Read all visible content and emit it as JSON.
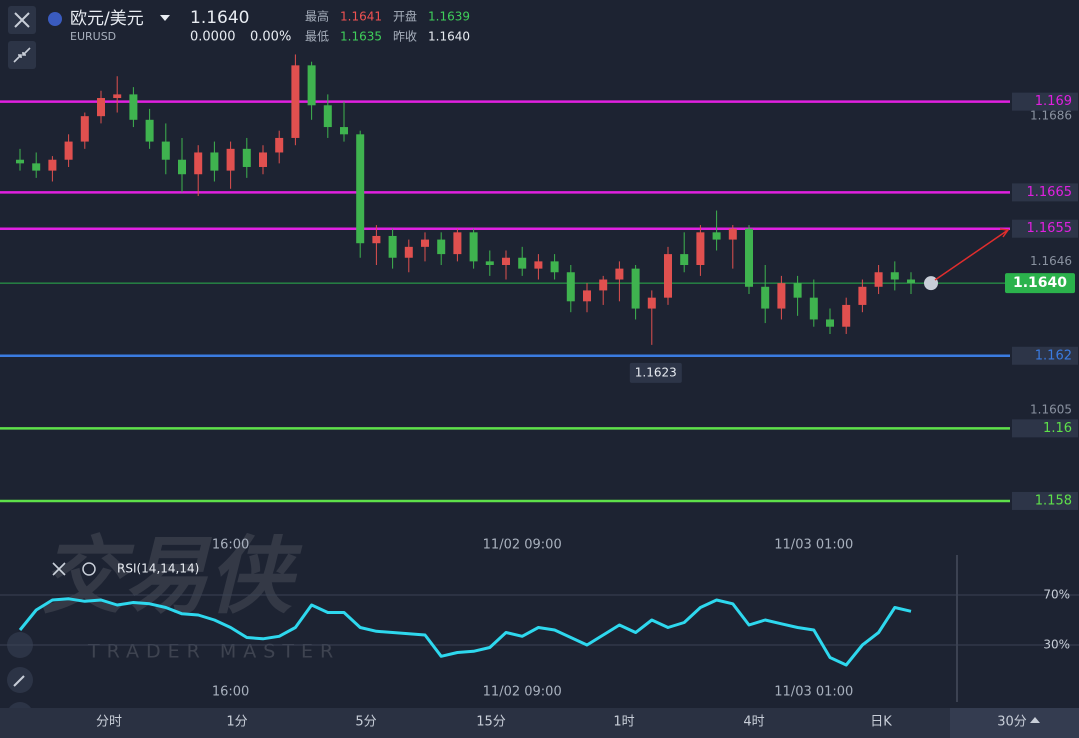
{
  "header": {
    "pair": "欧元/美元",
    "symbol": "EURUSD",
    "price": "1.1640",
    "change": "0.0000",
    "change_pct": "0.00%",
    "stats": [
      {
        "label": "最高",
        "value": "1.1641"
      },
      {
        "label": "开盘",
        "value": "1.1639"
      },
      {
        "label": "最低",
        "value": "1.1635"
      },
      {
        "label": "昨收",
        "value": "1.1640"
      }
    ]
  },
  "watermark": {
    "title": "交易侠",
    "subtitle": "TRADER MASTER"
  },
  "chart_data": {
    "type": "candlestick",
    "up_color": "#e0504f",
    "down_color": "#3fb34f",
    "ylim": [
      1.1572,
      1.1718
    ],
    "yticks": [
      1.1686,
      1.1646,
      1.1605
    ],
    "categories": [
      null,
      null,
      null,
      null,
      null,
      null,
      null,
      null,
      null,
      null,
      null,
      null,
      null,
      "16:00",
      null,
      null,
      null,
      null,
      null,
      null,
      null,
      null,
      null,
      null,
      null,
      null,
      null,
      null,
      null,
      null,
      null,
      "11/02 09:00",
      null,
      null,
      null,
      null,
      null,
      null,
      null,
      null,
      null,
      null,
      null,
      null,
      null,
      null,
      null,
      null,
      null,
      "11/03 01:00",
      null,
      null,
      null,
      null,
      null,
      null
    ],
    "candles": [
      [
        1.1674,
        1.1677,
        1.1671,
        1.1673
      ],
      [
        1.1673,
        1.1676,
        1.1669,
        1.1671
      ],
      [
        1.1671,
        1.1675,
        1.1668,
        1.1674
      ],
      [
        1.1674,
        1.1681,
        1.1672,
        1.1679
      ],
      [
        1.1679,
        1.1687,
        1.1677,
        1.1686
      ],
      [
        1.1686,
        1.1693,
        1.1684,
        1.1691
      ],
      [
        1.1691,
        1.1697,
        1.1687,
        1.1692
      ],
      [
        1.1692,
        1.1694,
        1.1683,
        1.1685
      ],
      [
        1.1685,
        1.1688,
        1.1677,
        1.1679
      ],
      [
        1.1679,
        1.1684,
        1.167,
        1.1674
      ],
      [
        1.1674,
        1.168,
        1.1665,
        1.167
      ],
      [
        1.167,
        1.1678,
        1.1664,
        1.1676
      ],
      [
        1.1676,
        1.1679,
        1.1668,
        1.1671
      ],
      [
        1.1671,
        1.1679,
        1.1666,
        1.1677
      ],
      [
        1.1677,
        1.168,
        1.1669,
        1.1672
      ],
      [
        1.1672,
        1.1678,
        1.167,
        1.1676
      ],
      [
        1.1676,
        1.1682,
        1.1673,
        1.168
      ],
      [
        1.168,
        1.1703,
        1.1678,
        1.17
      ],
      [
        1.17,
        1.1701,
        1.1685,
        1.1689
      ],
      [
        1.1689,
        1.1692,
        1.168,
        1.1683
      ],
      [
        1.1683,
        1.169,
        1.1679,
        1.1681
      ],
      [
        1.1681,
        1.1682,
        1.1647,
        1.1651
      ],
      [
        1.1651,
        1.1656,
        1.1645,
        1.1653
      ],
      [
        1.1653,
        1.1655,
        1.1644,
        1.1647
      ],
      [
        1.1647,
        1.1652,
        1.1643,
        1.165
      ],
      [
        1.165,
        1.1654,
        1.1646,
        1.1652
      ],
      [
        1.1652,
        1.1654,
        1.1645,
        1.1648
      ],
      [
        1.1648,
        1.1655,
        1.1646,
        1.1654
      ],
      [
        1.1654,
        1.1655,
        1.1644,
        1.1646
      ],
      [
        1.1646,
        1.1649,
        1.1642,
        1.1645
      ],
      [
        1.1645,
        1.1649,
        1.1641,
        1.1647
      ],
      [
        1.1647,
        1.165,
        1.1642,
        1.1644
      ],
      [
        1.1644,
        1.1648,
        1.1641,
        1.1646
      ],
      [
        1.1646,
        1.1648,
        1.1641,
        1.1643
      ],
      [
        1.1643,
        1.1645,
        1.1632,
        1.1635
      ],
      [
        1.1635,
        1.164,
        1.1632,
        1.1638
      ],
      [
        1.1638,
        1.1642,
        1.1634,
        1.1641
      ],
      [
        1.1641,
        1.1646,
        1.1635,
        1.1644
      ],
      [
        1.1644,
        1.1645,
        1.163,
        1.1633
      ],
      [
        1.1633,
        1.1638,
        1.1623,
        1.1636
      ],
      [
        1.1636,
        1.165,
        1.1634,
        1.1648
      ],
      [
        1.1648,
        1.1654,
        1.1643,
        1.1645
      ],
      [
        1.1645,
        1.1656,
        1.1642,
        1.1654
      ],
      [
        1.1654,
        1.166,
        1.1649,
        1.1652
      ],
      [
        1.1652,
        1.1656,
        1.1644,
        1.1655
      ],
      [
        1.1655,
        1.1656,
        1.1637,
        1.1639
      ],
      [
        1.1639,
        1.1645,
        1.1629,
        1.1633
      ],
      [
        1.1633,
        1.1642,
        1.163,
        1.164
      ],
      [
        1.164,
        1.1642,
        1.1631,
        1.1636
      ],
      [
        1.1636,
        1.1641,
        1.1628,
        1.163
      ],
      [
        1.163,
        1.1633,
        1.1626,
        1.1628
      ],
      [
        1.1628,
        1.1636,
        1.1626,
        1.1634
      ],
      [
        1.1634,
        1.1641,
        1.1632,
        1.1639
      ],
      [
        1.1639,
        1.1645,
        1.1637,
        1.1643
      ],
      [
        1.1643,
        1.1646,
        1.1638,
        1.1641
      ],
      [
        1.1641,
        1.1643,
        1.1637,
        1.164
      ]
    ],
    "low_marker": {
      "value": 1.1623
    },
    "last_price": {
      "value": 1.164,
      "label": "1.1640",
      "color": "#2bb24c"
    },
    "levels": [
      {
        "value": 1.169,
        "color": "#e020e0"
      },
      {
        "value": 1.1665,
        "color": "#e020e0"
      },
      {
        "value": 1.1655,
        "color": "#e020e0"
      },
      {
        "value": 1.162,
        "color": "#3a7be0"
      },
      {
        "value": 1.16,
        "color": "#5ee04a"
      },
      {
        "value": 1.158,
        "color": "#5ee04a"
      }
    ],
    "rsi": {
      "title": "RSI(14,14,14)",
      "color": "#2ed8ee",
      "ylim": [
        0,
        100
      ],
      "yticks": [
        {
          "value": 70,
          "label": "70%"
        },
        {
          "value": 30,
          "label": "30%"
        }
      ],
      "values": [
        42,
        58,
        66,
        67,
        65,
        66,
        62,
        64,
        63,
        60,
        55,
        54,
        50,
        44,
        36,
        35,
        37,
        44,
        62,
        56,
        56,
        44,
        41,
        40,
        39,
        38,
        21,
        24,
        25,
        28,
        40,
        37,
        44,
        42,
        36,
        30,
        38,
        46,
        40,
        50,
        44,
        48,
        60,
        66,
        63,
        46,
        50,
        47,
        44,
        42,
        20,
        14,
        30,
        40,
        60,
        57
      ]
    }
  },
  "tabs": [
    "分时",
    "1分",
    "5分",
    "15分",
    "1时",
    "4时",
    "日K",
    "30分"
  ]
}
